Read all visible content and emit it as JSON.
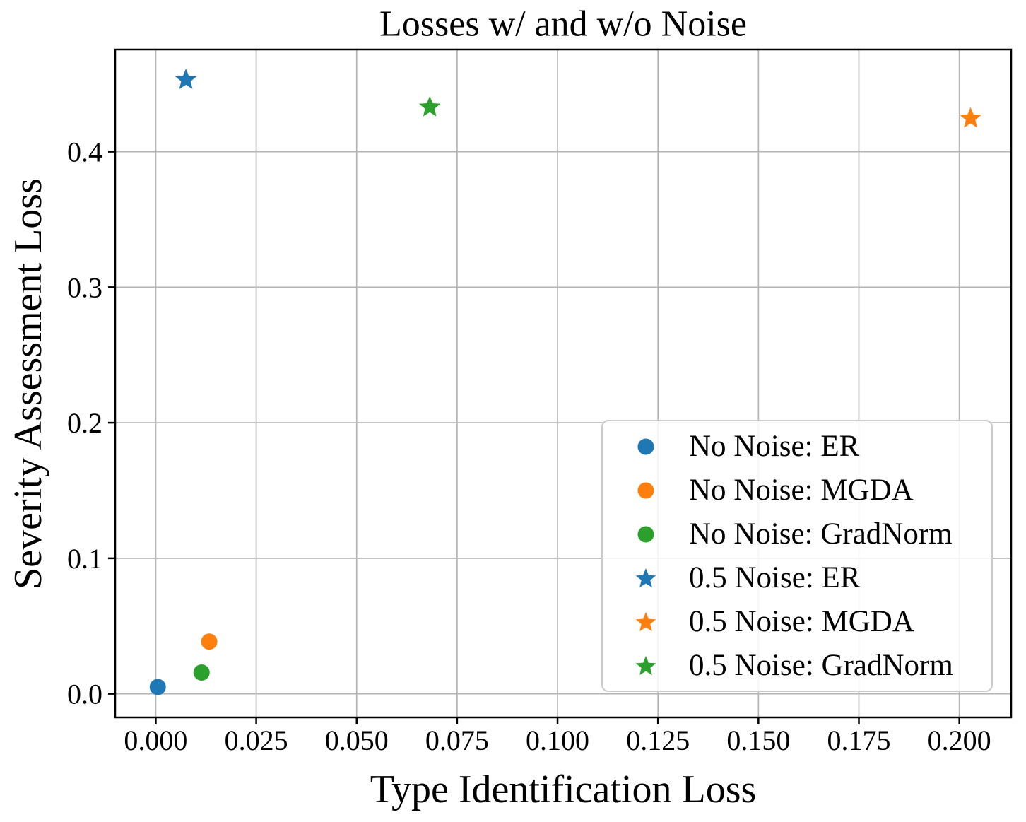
{
  "chart_data": {
    "type": "scatter",
    "title": "Losses w/ and w/o Noise",
    "xlabel": "Type Identification Loss",
    "ylabel": "Severity Assessment Loss",
    "xlim": [
      -0.0101,
      0.2129
    ],
    "ylim": [
      -0.0174,
      0.4754
    ],
    "grid": true,
    "legend_position": "lower right",
    "x_ticks": {
      "values": [
        0.0,
        0.025,
        0.05,
        0.075,
        0.1,
        0.125,
        0.15,
        0.175,
        0.2
      ],
      "labels": [
        "0.000",
        "0.025",
        "0.050",
        "0.075",
        "0.100",
        "0.125",
        "0.150",
        "0.175",
        "0.200"
      ]
    },
    "y_ticks": {
      "values": [
        0.0,
        0.1,
        0.2,
        0.3,
        0.4
      ],
      "labels": [
        "0.0",
        "0.1",
        "0.2",
        "0.3",
        "0.4"
      ]
    },
    "series": [
      {
        "name": "No Noise: ER",
        "marker": "circle",
        "color": "#1f77b4",
        "points": [
          [
            0.0005,
            0.005
          ]
        ]
      },
      {
        "name": "No Noise: MGDA",
        "marker": "circle",
        "color": "#ff7f0e",
        "points": [
          [
            0.0133,
            0.0385
          ]
        ]
      },
      {
        "name": "No Noise: GradNorm",
        "marker": "circle",
        "color": "#2ca02c",
        "points": [
          [
            0.0114,
            0.0157
          ]
        ]
      },
      {
        "name": "0.5 Noise: ER",
        "marker": "star",
        "color": "#1f77b4",
        "points": [
          [
            0.0075,
            0.453
          ]
        ]
      },
      {
        "name": "0.5 Noise: MGDA",
        "marker": "star",
        "color": "#ff7f0e",
        "points": [
          [
            0.2028,
            0.4245
          ]
        ]
      },
      {
        "name": "0.5 Noise: GradNorm",
        "marker": "star",
        "color": "#2ca02c",
        "points": [
          [
            0.0682,
            0.4328
          ]
        ]
      }
    ],
    "colors": {
      "grid": "#b4b4b4",
      "axis": "#000000",
      "legend_border": "#cccccc"
    }
  }
}
